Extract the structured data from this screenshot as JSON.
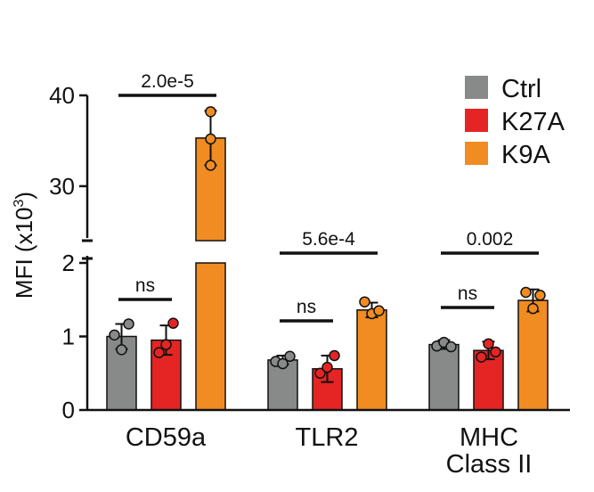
{
  "chart_data": {
    "type": "bar",
    "ylabel": "MFI (x10",
    "ylabel_sup": "3",
    "ylabel_close": ")",
    "axis_break": {
      "lower_range": [
        0,
        2
      ],
      "upper_range": [
        24,
        40
      ]
    },
    "lower_ticks": [
      "0",
      "1",
      "2"
    ],
    "upper_ticks": [
      "30",
      "40"
    ],
    "categories": [
      "CD59a",
      "TLR2",
      "MHC\nClass II"
    ],
    "category_lines": [
      [
        "CD59a"
      ],
      [
        "TLR2"
      ],
      [
        "MHC",
        "Class II"
      ]
    ],
    "series": [
      {
        "name": "Ctrl",
        "color": "#878a89",
        "values": [
          1.0,
          0.68,
          0.89
        ],
        "errors": [
          0.17,
          0.06,
          0.06
        ],
        "points": [
          [
            1.02,
            0.82,
            1.17
          ],
          [
            0.66,
            0.63,
            0.73
          ],
          [
            0.87,
            0.92,
            0.86
          ]
        ]
      },
      {
        "name": "K27A",
        "color": "#e42524",
        "values": [
          0.95,
          0.56,
          0.81
        ],
        "errors": [
          0.2,
          0.18,
          0.12
        ],
        "points": [
          [
            0.78,
            0.89,
            1.18
          ],
          [
            0.5,
            0.58,
            0.74
          ],
          [
            0.72,
            0.9,
            0.79
          ]
        ]
      },
      {
        "name": "K9A",
        "color": "#f08c21",
        "values": [
          35.3,
          1.36,
          1.49
        ],
        "errors": [
          3.0,
          0.1,
          0.15
        ],
        "points": [
          [
            32.3,
            35.2,
            38.2
          ],
          [
            1.47,
            1.31,
            1.35
          ],
          [
            1.6,
            1.38,
            1.56
          ]
        ]
      }
    ],
    "annotations": [
      {
        "group": 0,
        "label": "2.0e-5",
        "level": "high"
      },
      {
        "group": 0,
        "label": "ns",
        "level": "low"
      },
      {
        "group": 1,
        "label": "5.6e-4",
        "level": "high"
      },
      {
        "group": 1,
        "label": "ns",
        "level": "low"
      },
      {
        "group": 2,
        "label": "0.002",
        "level": "high"
      },
      {
        "group": 2,
        "label": "ns",
        "level": "low"
      }
    ],
    "legend": {
      "position": "top-right"
    }
  }
}
